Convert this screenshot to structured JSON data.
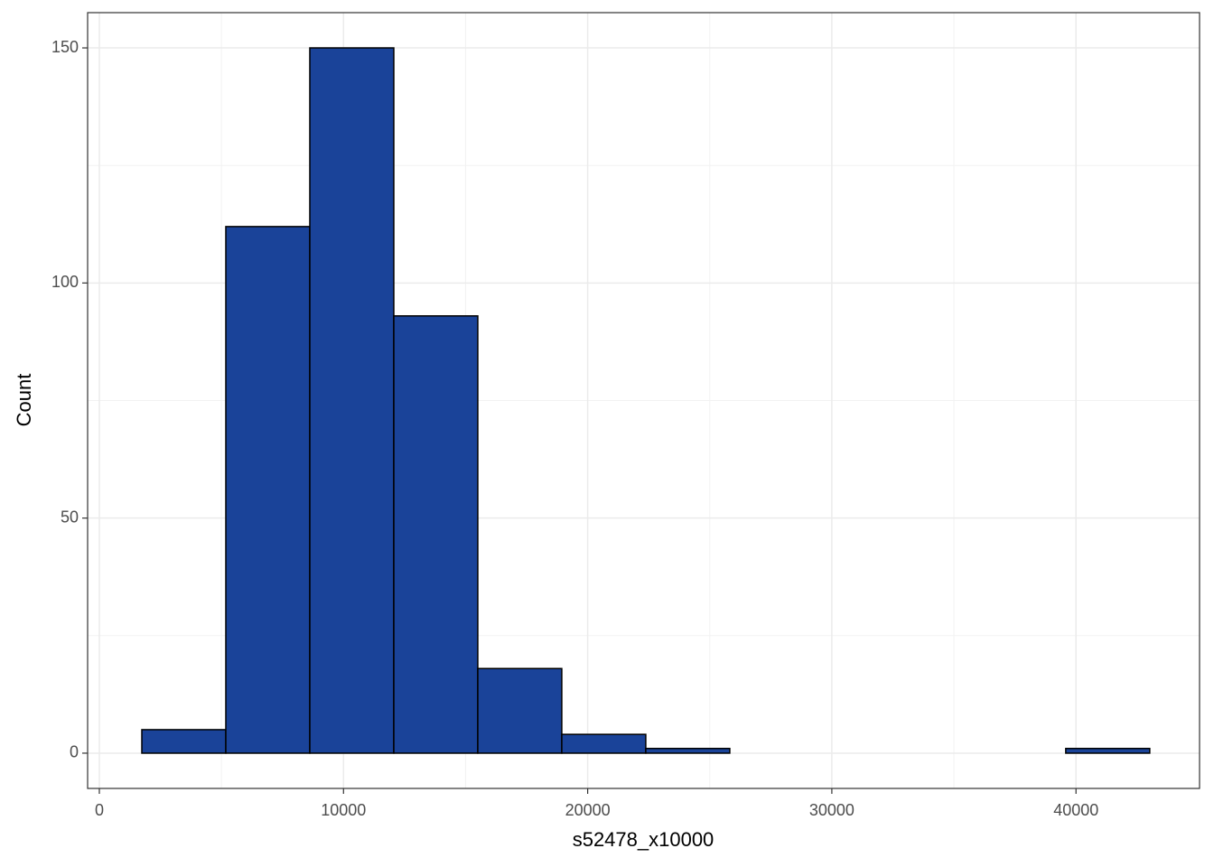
{
  "chart_data": {
    "type": "histogram",
    "xlabel": "s52478_x10000",
    "ylabel": "Count",
    "bins": [
      1740,
      5180,
      8620,
      12060,
      15500,
      18940,
      22380,
      25820,
      29260,
      32700,
      36140,
      39580,
      43020
    ],
    "values": [
      5,
      112,
      150,
      93,
      18,
      4,
      1,
      0,
      0,
      0,
      0,
      1
    ],
    "color": "#1a4399",
    "xlim": [
      -480,
      45060
    ],
    "ylim": [
      -7.5,
      157.5
    ],
    "xticks": [
      0,
      10000,
      20000,
      30000,
      40000
    ],
    "yticks": [
      0,
      50,
      100,
      150
    ],
    "xminor": [
      5000,
      15000,
      25000,
      35000
    ],
    "yminor": [
      25,
      75,
      125
    ],
    "grid": true
  }
}
